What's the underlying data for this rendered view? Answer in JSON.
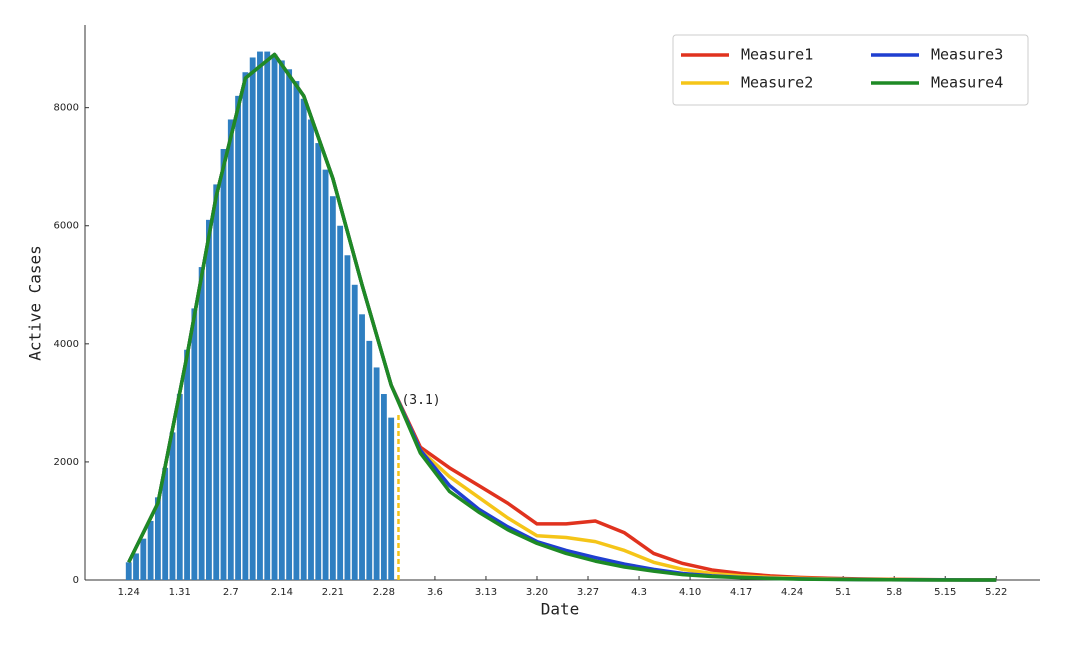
{
  "chart_data": {
    "type": "bar-line",
    "xlabel": "Date",
    "ylabel": "Active Cases",
    "xlim": [
      -6,
      125
    ],
    "ylim": [
      0,
      9400
    ],
    "yticks": [
      0,
      2000,
      4000,
      6000,
      8000
    ],
    "xticks": [
      {
        "value": 0,
        "label": "1.24"
      },
      {
        "value": 7,
        "label": "1.31"
      },
      {
        "value": 14,
        "label": "2.7"
      },
      {
        "value": 21,
        "label": "2.14"
      },
      {
        "value": 28,
        "label": "2.21"
      },
      {
        "value": 35,
        "label": "2.28"
      },
      {
        "value": 42,
        "label": "3.6"
      },
      {
        "value": 49,
        "label": "3.13"
      },
      {
        "value": 56,
        "label": "3.20"
      },
      {
        "value": 63,
        "label": "3.27"
      },
      {
        "value": 70,
        "label": "4.3"
      },
      {
        "value": 77,
        "label": "4.10"
      },
      {
        "value": 84,
        "label": "4.17"
      },
      {
        "value": 91,
        "label": "4.24"
      },
      {
        "value": 98,
        "label": "5.1"
      },
      {
        "value": 105,
        "label": "5.8"
      },
      {
        "value": 112,
        "label": "5.15"
      },
      {
        "value": 119,
        "label": "5.22"
      }
    ],
    "bars": {
      "color": "#2f7fc1",
      "x": [
        0,
        1,
        2,
        3,
        4,
        5,
        6,
        7,
        8,
        9,
        10,
        11,
        12,
        13,
        14,
        15,
        16,
        17,
        18,
        19,
        20,
        21,
        22,
        23,
        24,
        25,
        26,
        27,
        28,
        29,
        30,
        31,
        32,
        33,
        34,
        35,
        36
      ],
      "values": [
        300,
        450,
        700,
        1000,
        1400,
        1900,
        2500,
        3150,
        3900,
        4600,
        5300,
        6100,
        6700,
        7300,
        7800,
        8200,
        8600,
        8850,
        8950,
        8950,
        8900,
        8800,
        8650,
        8450,
        8150,
        7800,
        7400,
        6950,
        6500,
        6000,
        5500,
        5000,
        4500,
        4050,
        3600,
        3150,
        2750
      ]
    },
    "annotation": {
      "text": "(3.1)",
      "x": 37,
      "y": 2800,
      "color": "#f2c418"
    },
    "x": [
      0,
      4,
      8,
      12,
      16,
      20,
      24,
      28,
      32,
      36,
      40,
      44,
      48,
      52,
      56,
      60,
      64,
      68,
      72,
      76,
      80,
      84,
      88,
      92,
      96,
      100,
      104,
      108,
      112,
      116,
      119
    ],
    "series": [
      {
        "name": "Measure1",
        "color": "#e0321e",
        "values": [
          300,
          1300,
          3800,
          6500,
          8500,
          8900,
          8200,
          6800,
          5000,
          3300,
          2250,
          1900,
          1600,
          1300,
          950,
          950,
          1000,
          800,
          450,
          280,
          170,
          110,
          70,
          45,
          30,
          20,
          12,
          8,
          5,
          3,
          2
        ]
      },
      {
        "name": "Measure2",
        "color": "#f5c518",
        "values": [
          300,
          1300,
          3800,
          6500,
          8500,
          8900,
          8200,
          6800,
          5000,
          3300,
          2200,
          1750,
          1400,
          1050,
          750,
          720,
          650,
          500,
          300,
          180,
          110,
          70,
          45,
          30,
          20,
          12,
          8,
          5,
          3,
          2,
          1
        ]
      },
      {
        "name": "Measure3",
        "color": "#1f3fd0",
        "values": [
          300,
          1300,
          3800,
          6500,
          8500,
          8900,
          8200,
          6800,
          5000,
          3300,
          2200,
          1600,
          1200,
          900,
          650,
          500,
          380,
          270,
          180,
          110,
          70,
          45,
          30,
          20,
          12,
          8,
          5,
          3,
          2,
          1,
          0
        ]
      },
      {
        "name": "Measure4",
        "color": "#1e8a25",
        "values": [
          300,
          1300,
          3800,
          6500,
          8500,
          8900,
          8200,
          6800,
          5000,
          3300,
          2150,
          1500,
          1150,
          850,
          620,
          450,
          320,
          220,
          150,
          90,
          60,
          40,
          25,
          15,
          10,
          6,
          4,
          2,
          1,
          0,
          0
        ]
      }
    ],
    "legend": "upper right"
  }
}
